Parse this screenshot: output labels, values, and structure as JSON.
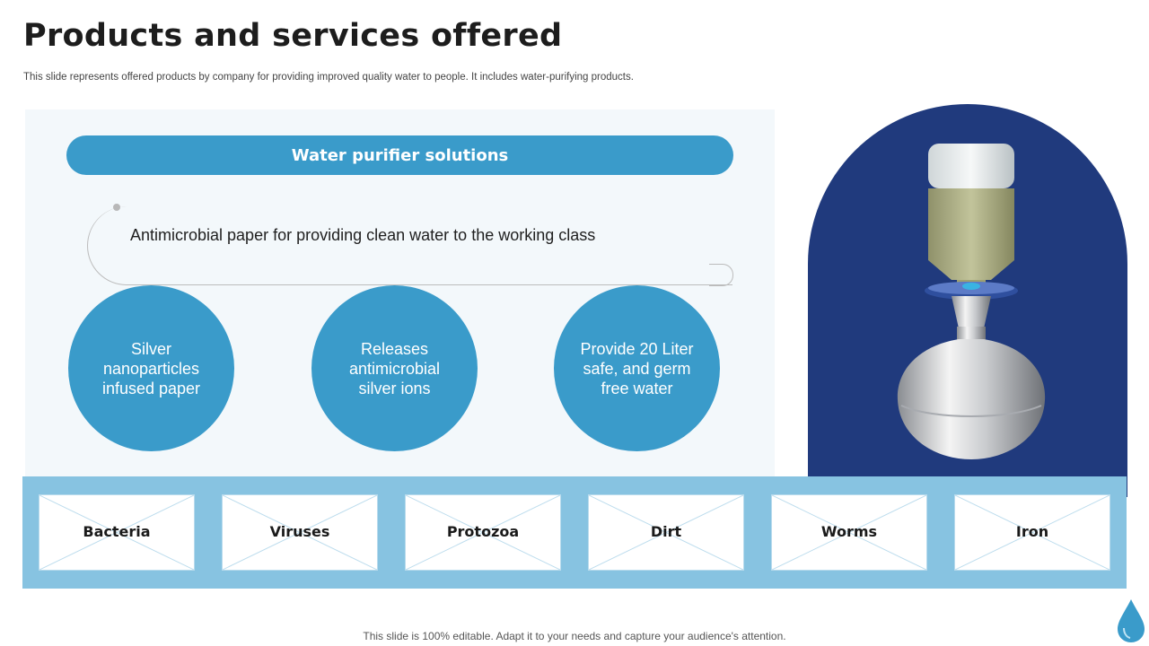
{
  "slide": {
    "title": "Products and services offered",
    "subtitle": "This slide represents offered products by company for providing improved quality water to people. It includes water-purifying products.",
    "footer": "This slide is 100% editable. Adapt it to your needs and capture your audience's attention."
  },
  "section": {
    "header": "Water purifier solutions",
    "statement": "Antimicrobial paper for providing clean water to the working class"
  },
  "features": [
    "Silver nanoparticles infused paper",
    "Releases antimicrobial silver ions",
    "Provide 20 Liter safe, and germ free water"
  ],
  "contaminants": [
    "Bacteria",
    "Viruses",
    "Protozoa",
    "Dirt",
    "Worms",
    "Iron"
  ],
  "colors": {
    "accent": "#3a9bca",
    "navy": "#203a7d",
    "strip": "#87c3e1",
    "panel": "#f3f8fb"
  },
  "icons": [
    "water-drop-icon"
  ]
}
